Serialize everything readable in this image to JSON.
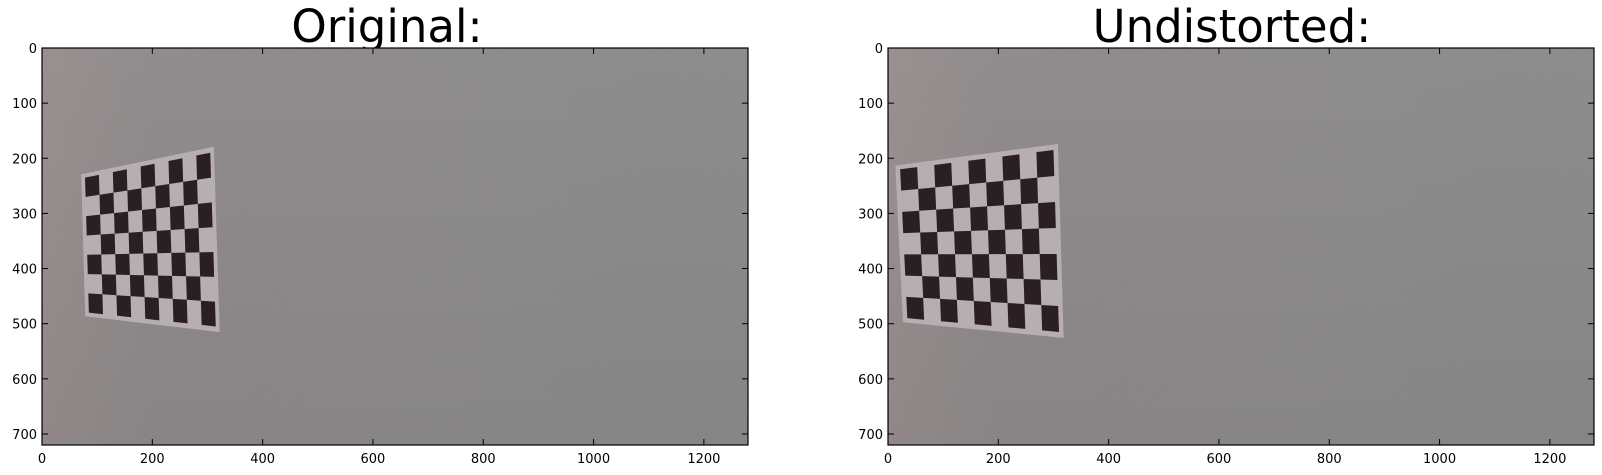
{
  "figure": {
    "background": "#ffffff",
    "panels": [
      {
        "id": "original",
        "title": "Original:",
        "image": {
          "description_colors": {
            "wall": "#8b8b8b",
            "wall_left_tint": "#978f8e",
            "board_paper": "#b6aeb0",
            "board_square": "#2a1f22"
          }
        },
        "axes": {
          "xlim": [
            0,
            1280
          ],
          "ylim": [
            720,
            0
          ],
          "xticks": [
            0,
            200,
            400,
            600,
            800,
            1000,
            1200
          ],
          "yticks": [
            0,
            100,
            200,
            300,
            400,
            500,
            600,
            700
          ],
          "x_tick_labels": [
            "0",
            "200",
            "400",
            "600",
            "800",
            "1000",
            "1200"
          ],
          "y_tick_labels": [
            "0",
            "100",
            "200",
            "300",
            "400",
            "500",
            "600",
            "700"
          ]
        },
        "board": {
          "corners_data": [
            [
              78,
              235
            ],
            [
              305,
              190
            ],
            [
              315,
              505
            ],
            [
              85,
              480
            ]
          ],
          "cols": 9,
          "rows": 7
        }
      },
      {
        "id": "undistorted",
        "title": "Undistorted:",
        "image": {
          "description_colors": {
            "wall": "#8b8b8b",
            "wall_left_tint": "#978f8e",
            "board_paper": "#b6aeb0",
            "board_square": "#2a1f22"
          }
        },
        "axes": {
          "xlim": [
            0,
            1280
          ],
          "ylim": [
            720,
            0
          ],
          "xticks": [
            0,
            200,
            400,
            600,
            800,
            1000,
            1200
          ],
          "yticks": [
            0,
            100,
            200,
            300,
            400,
            500,
            600,
            700
          ],
          "x_tick_labels": [
            "0",
            "200",
            "400",
            "600",
            "800",
            "1000",
            "1200"
          ],
          "y_tick_labels": [
            "0",
            "100",
            "200",
            "300",
            "400",
            "500",
            "600",
            "700"
          ]
        },
        "board": {
          "corners_data": [
            [
              22,
              220
            ],
            [
              300,
              185
            ],
            [
              310,
              515
            ],
            [
              35,
              490
            ]
          ],
          "cols": 9,
          "rows": 7
        }
      }
    ]
  }
}
